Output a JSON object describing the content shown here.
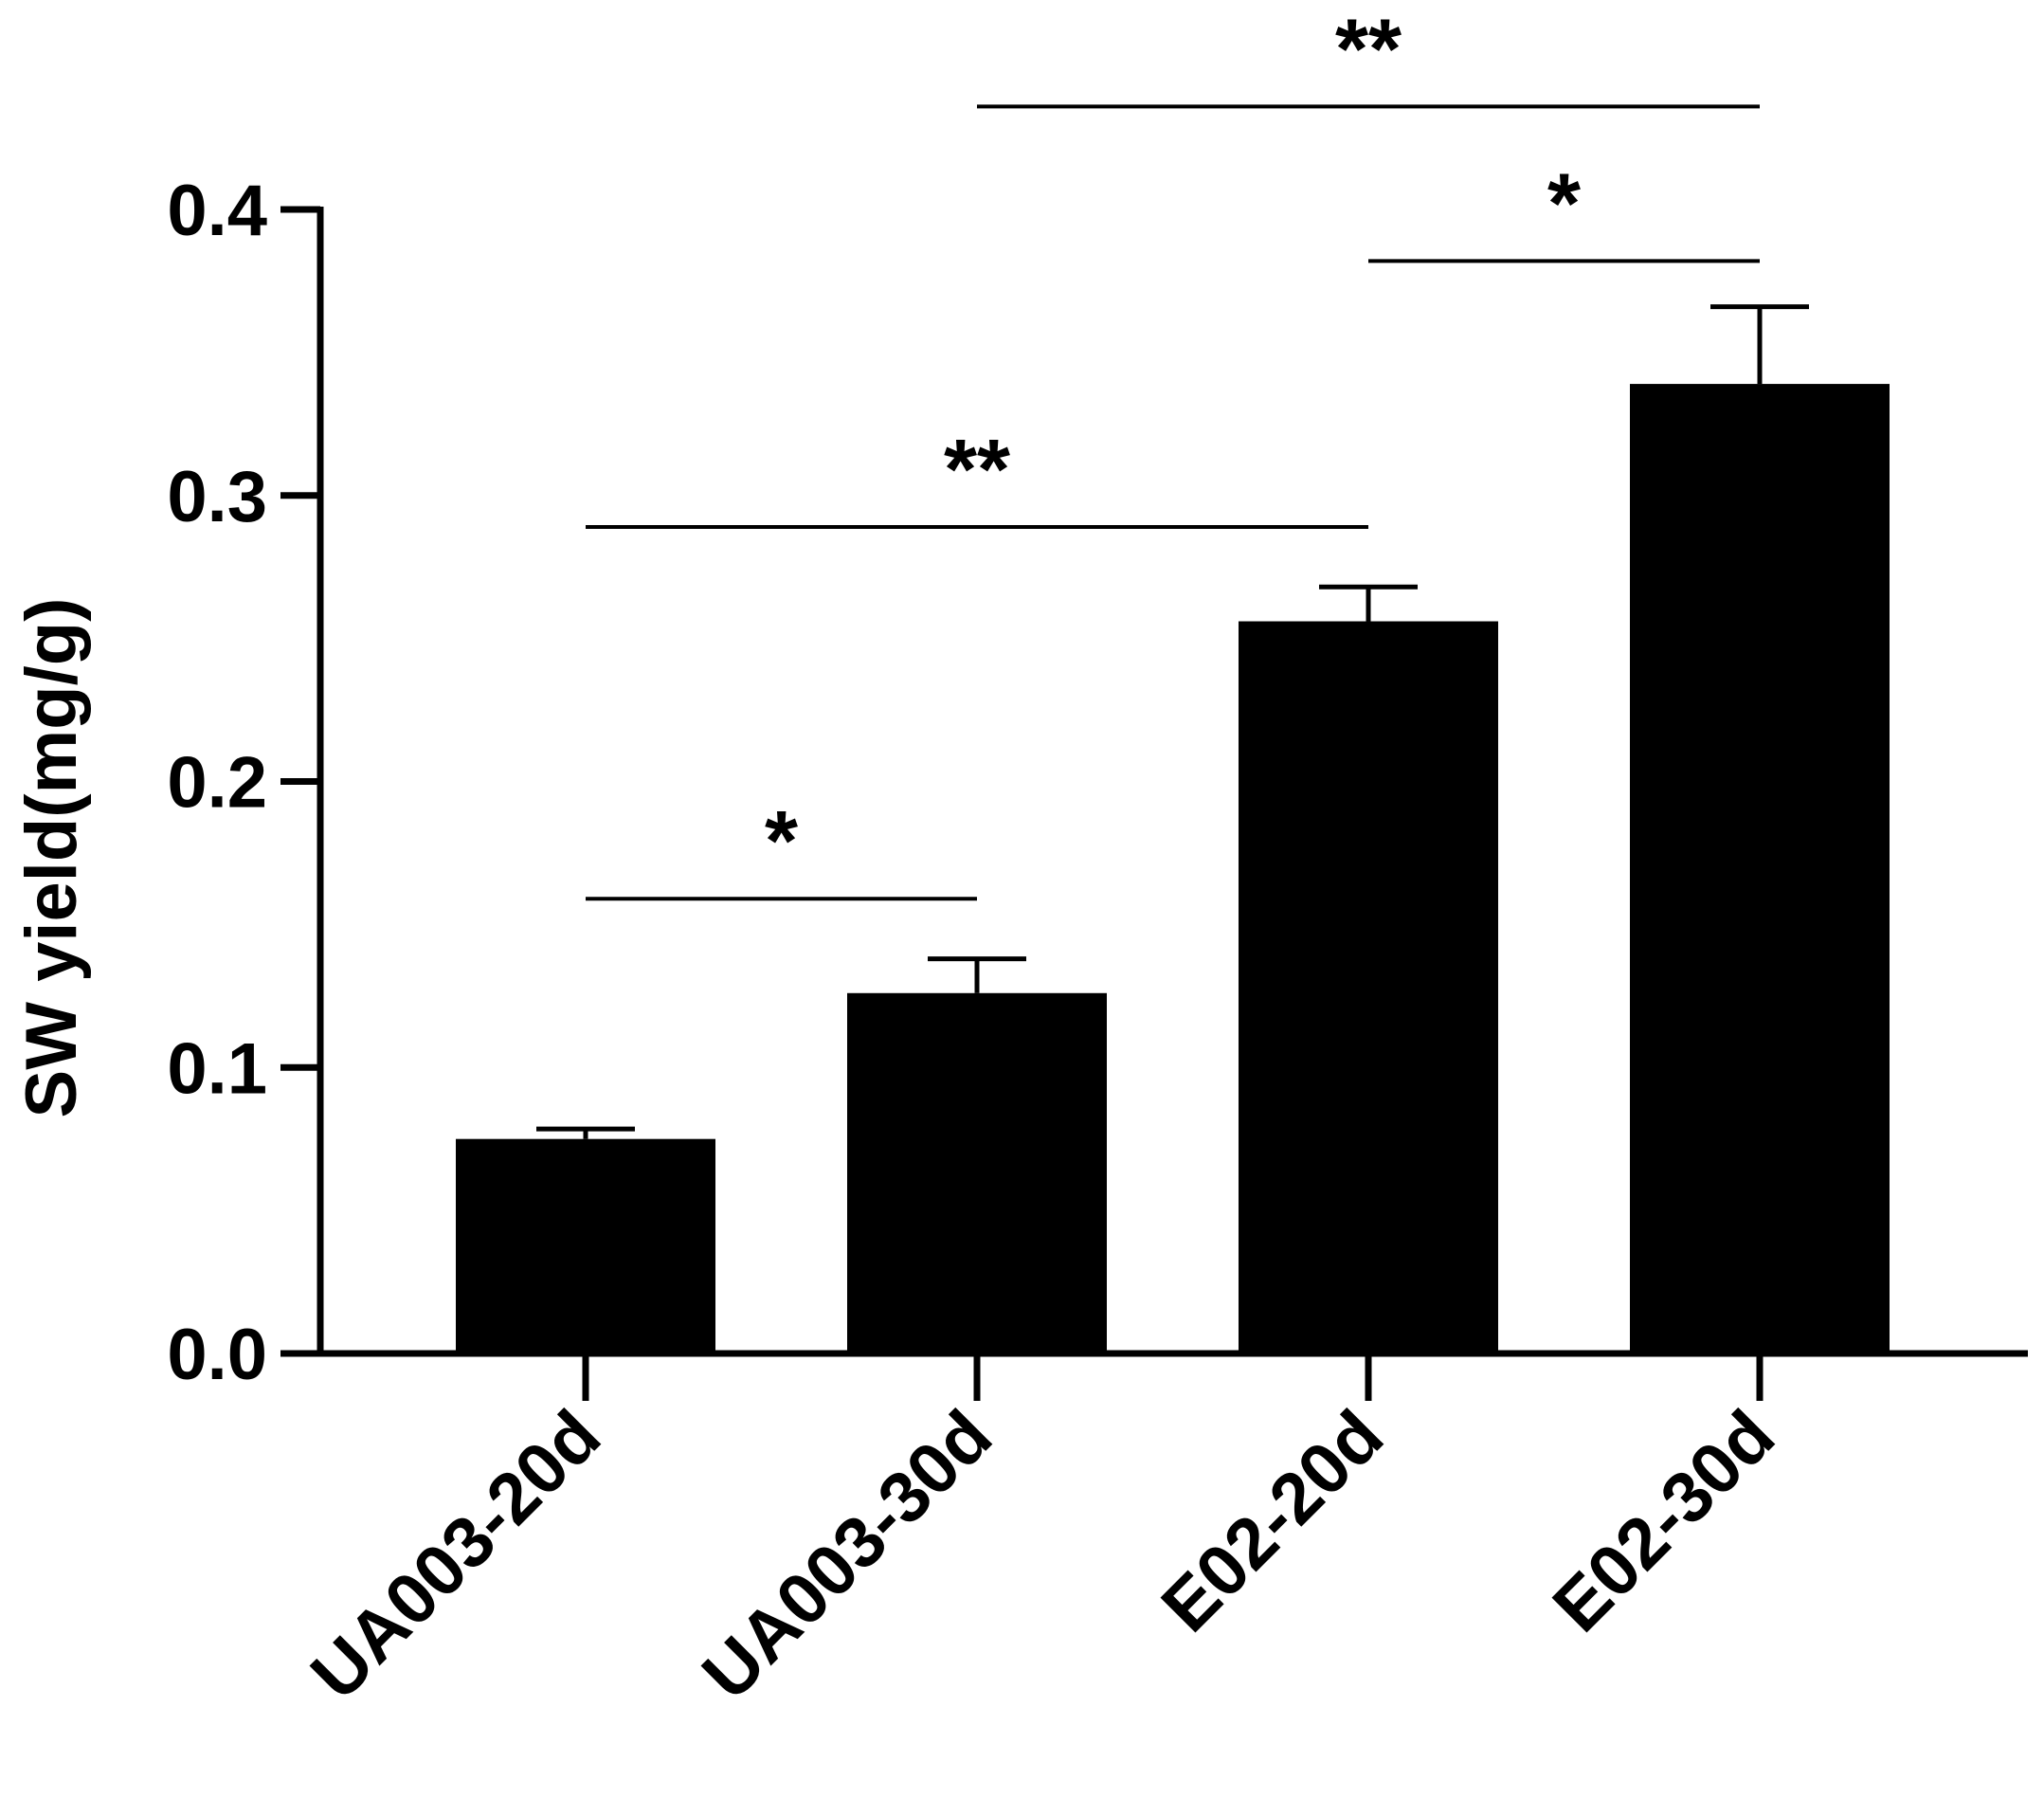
{
  "chart_data": {
    "type": "bar",
    "title": "",
    "xlabel": "",
    "ylabel": "SW yield(mg/g)",
    "ylim": [
      0,
      0.4
    ],
    "yticks": [
      0.0,
      0.1,
      0.2,
      0.3,
      0.4
    ],
    "ytick_labels": [
      "0.0",
      "0.1",
      "0.2",
      "0.3",
      "0.4"
    ],
    "categories": [
      "UA003-20d",
      "UA003-30d",
      "E02-20d",
      "E02-30d"
    ],
    "values": [
      0.075,
      0.126,
      0.256,
      0.339
    ],
    "errors": [
      0.0035,
      0.012,
      0.012,
      0.027
    ],
    "grid": false,
    "legend": "none",
    "bar_color": "#000000",
    "significance": [
      {
        "from": 0,
        "to": 1,
        "level": 0.159,
        "label": "*"
      },
      {
        "from": 0,
        "to": 2,
        "level": 0.289,
        "label": "**"
      },
      {
        "from": 2,
        "to": 3,
        "level": 0.382,
        "label": "*"
      },
      {
        "from": 1,
        "to": 3,
        "level": 0.436,
        "label": "**"
      }
    ]
  }
}
